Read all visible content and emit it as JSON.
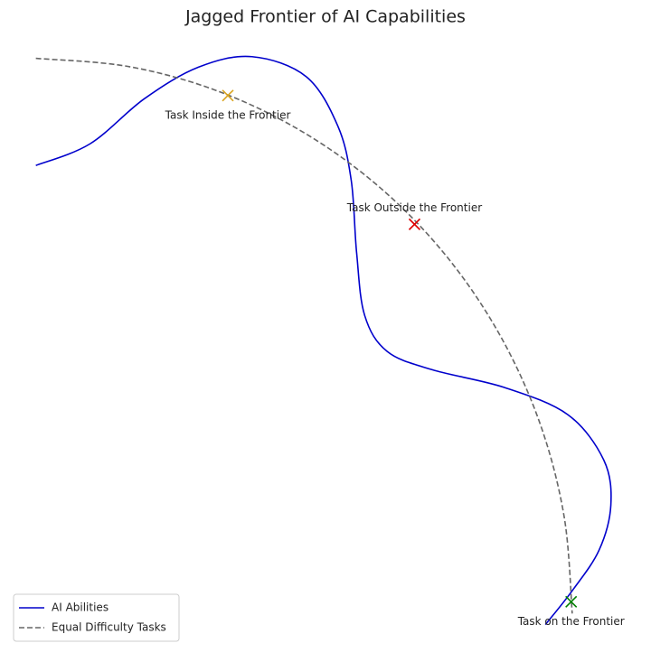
{
  "chart_data": {
    "type": "line",
    "title": "Jagged Frontier of AI Capabilities",
    "xlim": [
      -0.05,
      1.13
    ],
    "ylim": [
      -0.05,
      1.04
    ],
    "legend": "lower left",
    "series": [
      {
        "name": "AI Abilities",
        "color": "#0000cc",
        "style": "solid",
        "x": [
          0,
          0.101,
          0.202,
          0.303,
          0.403,
          0.504,
          0.563,
          0.588,
          0.598,
          0.613,
          0.655,
          0.739,
          0.874,
          0.992,
          1.059,
          1.072,
          1.05,
          1.0,
          0.95
        ],
        "values": [
          0.807,
          0.846,
          0.927,
          0.984,
          1.003,
          0.967,
          0.878,
          0.78,
          0.65,
          0.537,
          0.472,
          0.439,
          0.407,
          0.358,
          0.276,
          0.195,
          0.114,
          0.041,
          -0.02
        ]
      },
      {
        "name": "Equal Difficulty Tasks",
        "color": "#666666",
        "style": "dashed",
        "x": [
          0,
          0.174,
          0.342,
          0.5,
          0.643,
          0.766,
          0.866,
          0.94,
          0.985,
          1
        ],
        "values": [
          1,
          0.985,
          0.94,
          0.866,
          0.766,
          0.643,
          0.5,
          0.342,
          0.174,
          0
        ]
      }
    ],
    "points": [
      {
        "label": "Task Inside the Frontier",
        "x": 0.358,
        "y": 0.933,
        "color": "#daa520",
        "label_position": "below"
      },
      {
        "label": "Task Outside the Frontier",
        "x": 0.706,
        "y": 0.701,
        "color": "#dd0000",
        "label_position": "above"
      },
      {
        "label": "Task on the Frontier",
        "x": 0.998,
        "y": 0.021,
        "color": "#008000",
        "label_position": "below"
      }
    ]
  }
}
